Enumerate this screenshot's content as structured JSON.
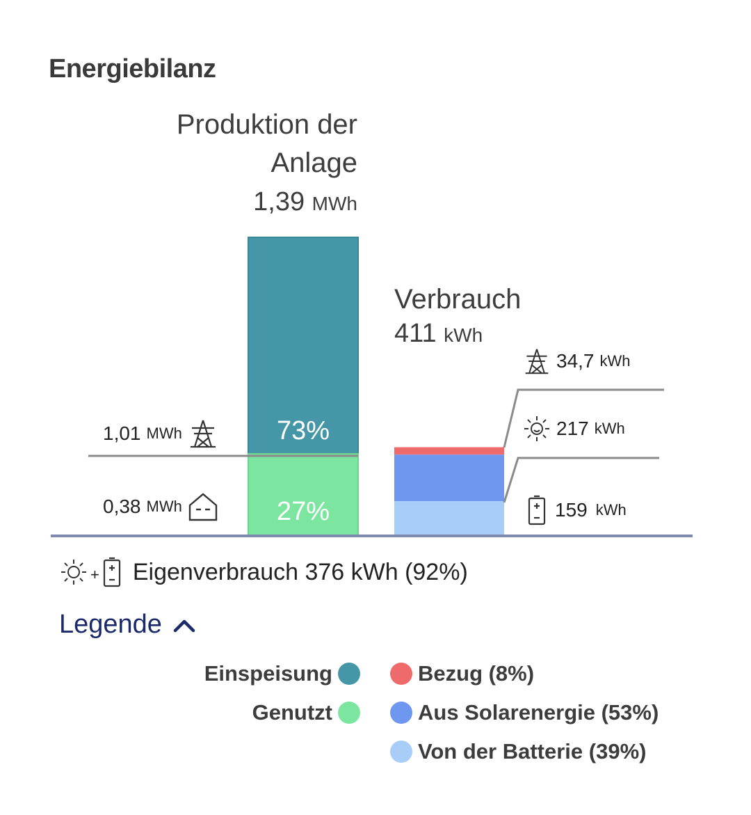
{
  "title": "Energiebilanz",
  "production": {
    "label_line1": "Produktion der",
    "label_line2": "Anlage",
    "value": "1,39",
    "unit": "MWh"
  },
  "consumption": {
    "label": "Verbrauch",
    "value": "411",
    "unit": "kWh"
  },
  "feed_in_label": {
    "value": "1,01",
    "unit": "MWh",
    "icon": "power-tower-icon"
  },
  "used_label": {
    "value": "0,38",
    "unit": "MWh",
    "icon": "house-icon"
  },
  "grid_label": {
    "value": "34,7",
    "unit": "kWh",
    "icon": "power-tower-icon"
  },
  "solar_label": {
    "value": "217",
    "unit": "kWh",
    "icon": "sun-icon"
  },
  "battery_label": {
    "value": "159",
    "unit": "kWh",
    "icon": "battery-icon"
  },
  "self_consumption": {
    "plus": "+",
    "text": "Eigenverbrauch 376 kWh (92%)"
  },
  "legend": {
    "title": "Legende",
    "items_left": [
      {
        "label": "Einspeisung",
        "color": "#4597a8"
      },
      {
        "label": "Genutzt",
        "color": "#7ce6a0"
      }
    ],
    "items_right": [
      {
        "label": "Bezug (8%)",
        "color": "#ef6b6b"
      },
      {
        "label": "Aus Solarenergie (53%)",
        "color": "#7097f0"
      },
      {
        "label": "Von der Batterie (39%)",
        "color": "#a8cef8"
      }
    ]
  },
  "chart_data": {
    "type": "bar",
    "stacked": true,
    "categories": [
      "Produktion der Anlage",
      "Verbrauch"
    ],
    "series": [
      {
        "name": "Einspeisung",
        "stack": "Produktion der Anlage",
        "value_mwh": 1.01,
        "percent": 73,
        "percent_label": "73%",
        "color": "#4597a8"
      },
      {
        "name": "Genutzt",
        "stack": "Produktion der Anlage",
        "value_mwh": 0.38,
        "percent": 27,
        "percent_label": "27%",
        "color": "#7ce6a0"
      },
      {
        "name": "Bezug",
        "stack": "Verbrauch",
        "value_kwh": 34.7,
        "percent": 8,
        "color": "#ef6b6b"
      },
      {
        "name": "Aus Solarenergie",
        "stack": "Verbrauch",
        "value_kwh": 217,
        "percent": 53,
        "color": "#7097f0"
      },
      {
        "name": "Von der Batterie",
        "stack": "Verbrauch",
        "value_kwh": 159,
        "percent": 39,
        "color": "#a8cef8"
      }
    ],
    "totals": {
      "Produktion der Anlage": 1390,
      "Verbrauch": 411
    },
    "total_unit": "kWh"
  }
}
